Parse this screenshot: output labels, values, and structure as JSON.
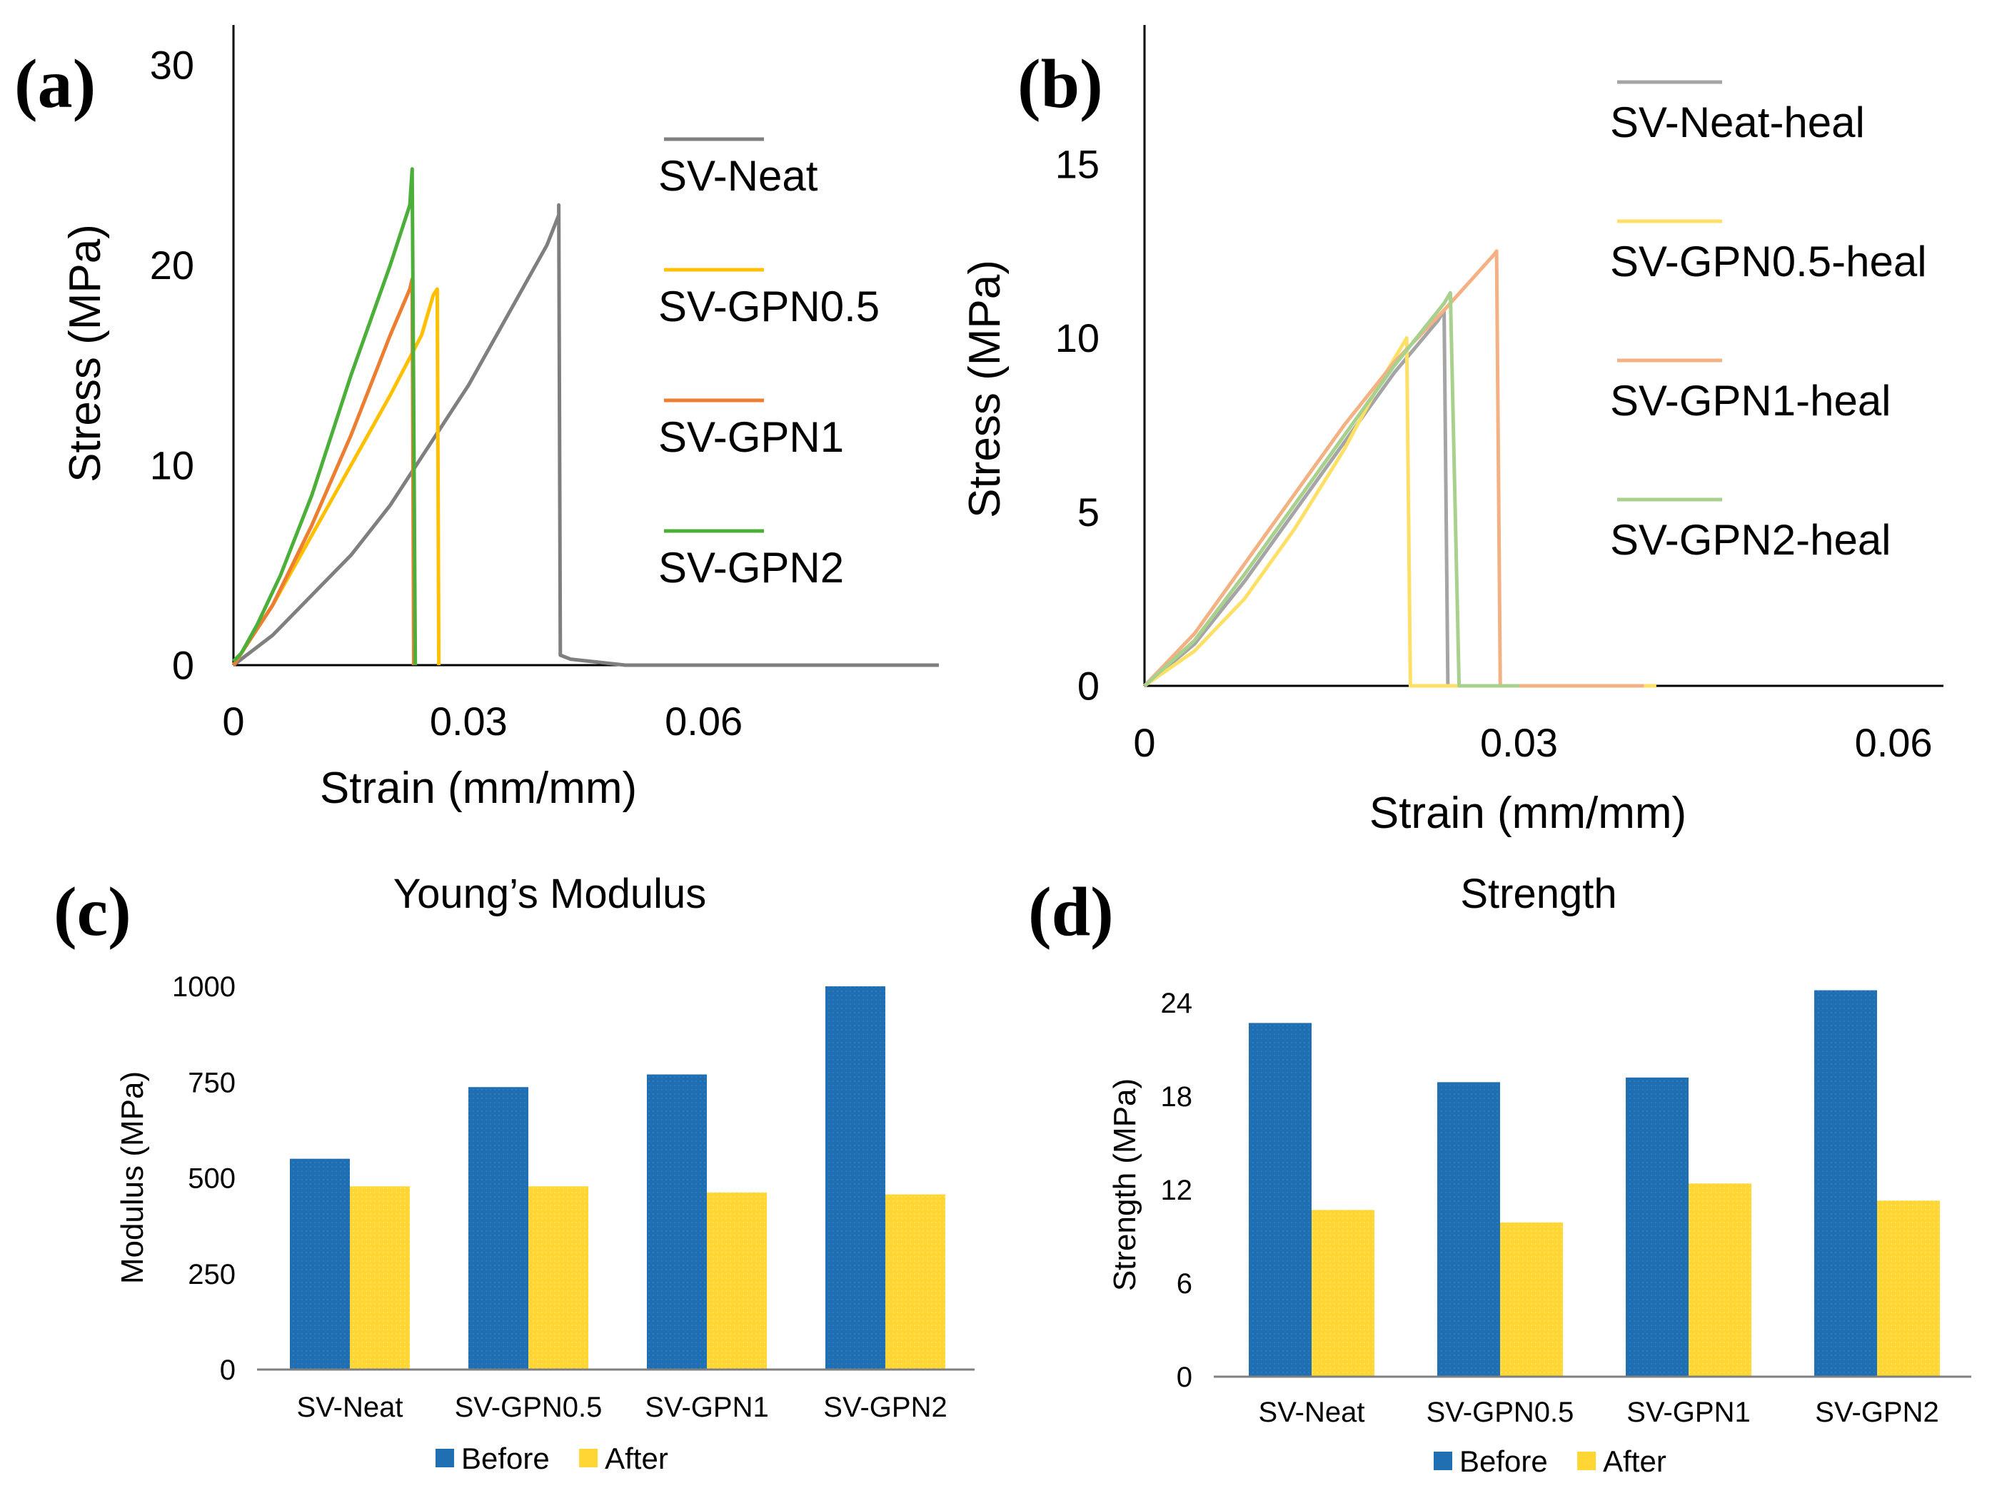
{
  "chart_data": [
    {
      "panel": "(a)",
      "type": "line",
      "title": "",
      "xlabel": "Strain (mm/mm)",
      "ylabel": "Stress (MPa)",
      "xlim": [
        0,
        0.09
      ],
      "ylim": [
        0,
        32
      ],
      "xticks": [
        0,
        0.03,
        0.06
      ],
      "xtick_labels": [
        "0",
        "0.03",
        "0.06"
      ],
      "yticks": [
        0,
        10,
        20,
        30
      ],
      "ytick_labels": [
        "0",
        "10",
        "20",
        "30"
      ],
      "legend_position": "right",
      "series": [
        {
          "name": "SV-Neat",
          "color": "#7f7f7f",
          "points": [
            [
              0,
              0
            ],
            [
              0.005,
              1.5
            ],
            [
              0.01,
              3.5
            ],
            [
              0.015,
              5.5
            ],
            [
              0.02,
              8
            ],
            [
              0.025,
              11
            ],
            [
              0.03,
              14
            ],
            [
              0.035,
              17.5
            ],
            [
              0.04,
              21
            ],
            [
              0.0415,
              22.5
            ],
            [
              0.0415,
              23
            ],
            [
              0.0417,
              0.5
            ],
            [
              0.043,
              0.3
            ],
            [
              0.05,
              0
            ],
            [
              0.09,
              0
            ]
          ]
        },
        {
          "name": "SV-GPN0.5",
          "color": "#ffc000",
          "points": [
            [
              0,
              0
            ],
            [
              0.005,
              3
            ],
            [
              0.01,
              6.5
            ],
            [
              0.015,
              10
            ],
            [
              0.02,
              13.5
            ],
            [
              0.024,
              16.5
            ],
            [
              0.0255,
              18.5
            ],
            [
              0.026,
              18.8
            ],
            [
              0.0262,
              0
            ]
          ]
        },
        {
          "name": "SV-GPN1",
          "color": "#ed7d31",
          "points": [
            [
              0,
              0
            ],
            [
              0.005,
              3
            ],
            [
              0.01,
              7
            ],
            [
              0.015,
              11.5
            ],
            [
              0.02,
              16.5
            ],
            [
              0.0225,
              18.8
            ],
            [
              0.0228,
              19.3
            ],
            [
              0.023,
              0
            ]
          ]
        },
        {
          "name": "SV-GPN2",
          "color": "#4caf3a",
          "points": [
            [
              0,
              0.2
            ],
            [
              0.001,
              0.6
            ],
            [
              0.003,
              2
            ],
            [
              0.006,
              4.5
            ],
            [
              0.01,
              8.5
            ],
            [
              0.015,
              14.5
            ],
            [
              0.02,
              20
            ],
            [
              0.0225,
              23
            ],
            [
              0.0228,
              24.8
            ],
            [
              0.0232,
              0
            ]
          ]
        }
      ]
    },
    {
      "panel": "(b)",
      "type": "line",
      "title": "",
      "xlabel": "Strain (mm/mm)",
      "ylabel": "Stress (MPa)",
      "xlim": [
        0,
        0.064
      ],
      "ylim": [
        0,
        19
      ],
      "xticks": [
        0,
        0.03,
        0.06
      ],
      "xtick_labels": [
        "0",
        "0.03",
        "0.06"
      ],
      "yticks": [
        0,
        5,
        10,
        15
      ],
      "ytick_labels": [
        "0",
        "5",
        "10",
        "15"
      ],
      "legend_position": "right",
      "series": [
        {
          "name": "SV-Neat-heal",
          "color": "#a5a5a5",
          "points": [
            [
              0,
              0
            ],
            [
              0.004,
              1.2
            ],
            [
              0.008,
              3
            ],
            [
              0.012,
              5
            ],
            [
              0.016,
              7
            ],
            [
              0.02,
              9
            ],
            [
              0.0235,
              10.5
            ],
            [
              0.024,
              10.8
            ],
            [
              0.0243,
              0
            ],
            [
              0.04,
              0
            ]
          ]
        },
        {
          "name": "SV-GPN0.5-heal",
          "color": "#ffe066",
          "points": [
            [
              0,
              0
            ],
            [
              0.004,
              1
            ],
            [
              0.008,
              2.5
            ],
            [
              0.012,
              4.5
            ],
            [
              0.016,
              6.8
            ],
            [
              0.019,
              8.8
            ],
            [
              0.021,
              10
            ],
            [
              0.0213,
              0
            ],
            [
              0.041,
              0
            ]
          ]
        },
        {
          "name": "SV-GPN1-heal",
          "color": "#f4b183",
          "points": [
            [
              0,
              0
            ],
            [
              0.004,
              1.5
            ],
            [
              0.008,
              3.5
            ],
            [
              0.012,
              5.5
            ],
            [
              0.016,
              7.5
            ],
            [
              0.02,
              9.3
            ],
            [
              0.024,
              10.8
            ],
            [
              0.028,
              12.4
            ],
            [
              0.0282,
              12.5
            ],
            [
              0.0285,
              0
            ],
            [
              0.04,
              0
            ]
          ]
        },
        {
          "name": "SV-GPN2-heal",
          "color": "#a9d18e",
          "points": [
            [
              0,
              0
            ],
            [
              0.004,
              1.3
            ],
            [
              0.008,
              3.2
            ],
            [
              0.012,
              5.2
            ],
            [
              0.016,
              7.2
            ],
            [
              0.02,
              9.2
            ],
            [
              0.024,
              11
            ],
            [
              0.0245,
              11.3
            ],
            [
              0.0252,
              0
            ],
            [
              0.03,
              0
            ]
          ]
        }
      ]
    },
    {
      "panel": "(c)",
      "type": "bar",
      "title": "Young’s Modulus",
      "xlabel": "",
      "ylabel": "Modulus (MPa)",
      "ylim": [
        0,
        1000
      ],
      "yticks": [
        0,
        250,
        500,
        750,
        1000
      ],
      "ytick_labels": [
        "0",
        "250",
        "500",
        "750",
        "1000"
      ],
      "categories": [
        "SV-Neat",
        "SV-GPN0.5",
        "SV-GPN1",
        "SV-GPN2"
      ],
      "legend_position": "bottom",
      "series": [
        {
          "name": "Before",
          "color": "#1f6fb2",
          "values": [
            550,
            737,
            770,
            1000
          ]
        },
        {
          "name": "After",
          "color": "#ffd633",
          "values": [
            478,
            478,
            462,
            457
          ]
        }
      ]
    },
    {
      "panel": "(d)",
      "type": "bar",
      "title": "Strength",
      "xlabel": "",
      "ylabel": "Strength (MPa)",
      "ylim": [
        0,
        24
      ],
      "yticks": [
        0,
        6,
        12,
        18,
        24
      ],
      "ytick_labels": [
        "0",
        "6",
        "12",
        "18",
        "24"
      ],
      "categories": [
        "SV-Neat",
        "SV-GPN0.5",
        "SV-GPN1",
        "SV-GPN2"
      ],
      "legend_position": "bottom",
      "series": [
        {
          "name": "Before",
          "color": "#1f6fb2",
          "values": [
            22.7,
            18.9,
            19.2,
            24.8
          ]
        },
        {
          "name": "After",
          "color": "#ffd633",
          "values": [
            10.7,
            9.9,
            12.4,
            11.3
          ]
        }
      ]
    }
  ]
}
